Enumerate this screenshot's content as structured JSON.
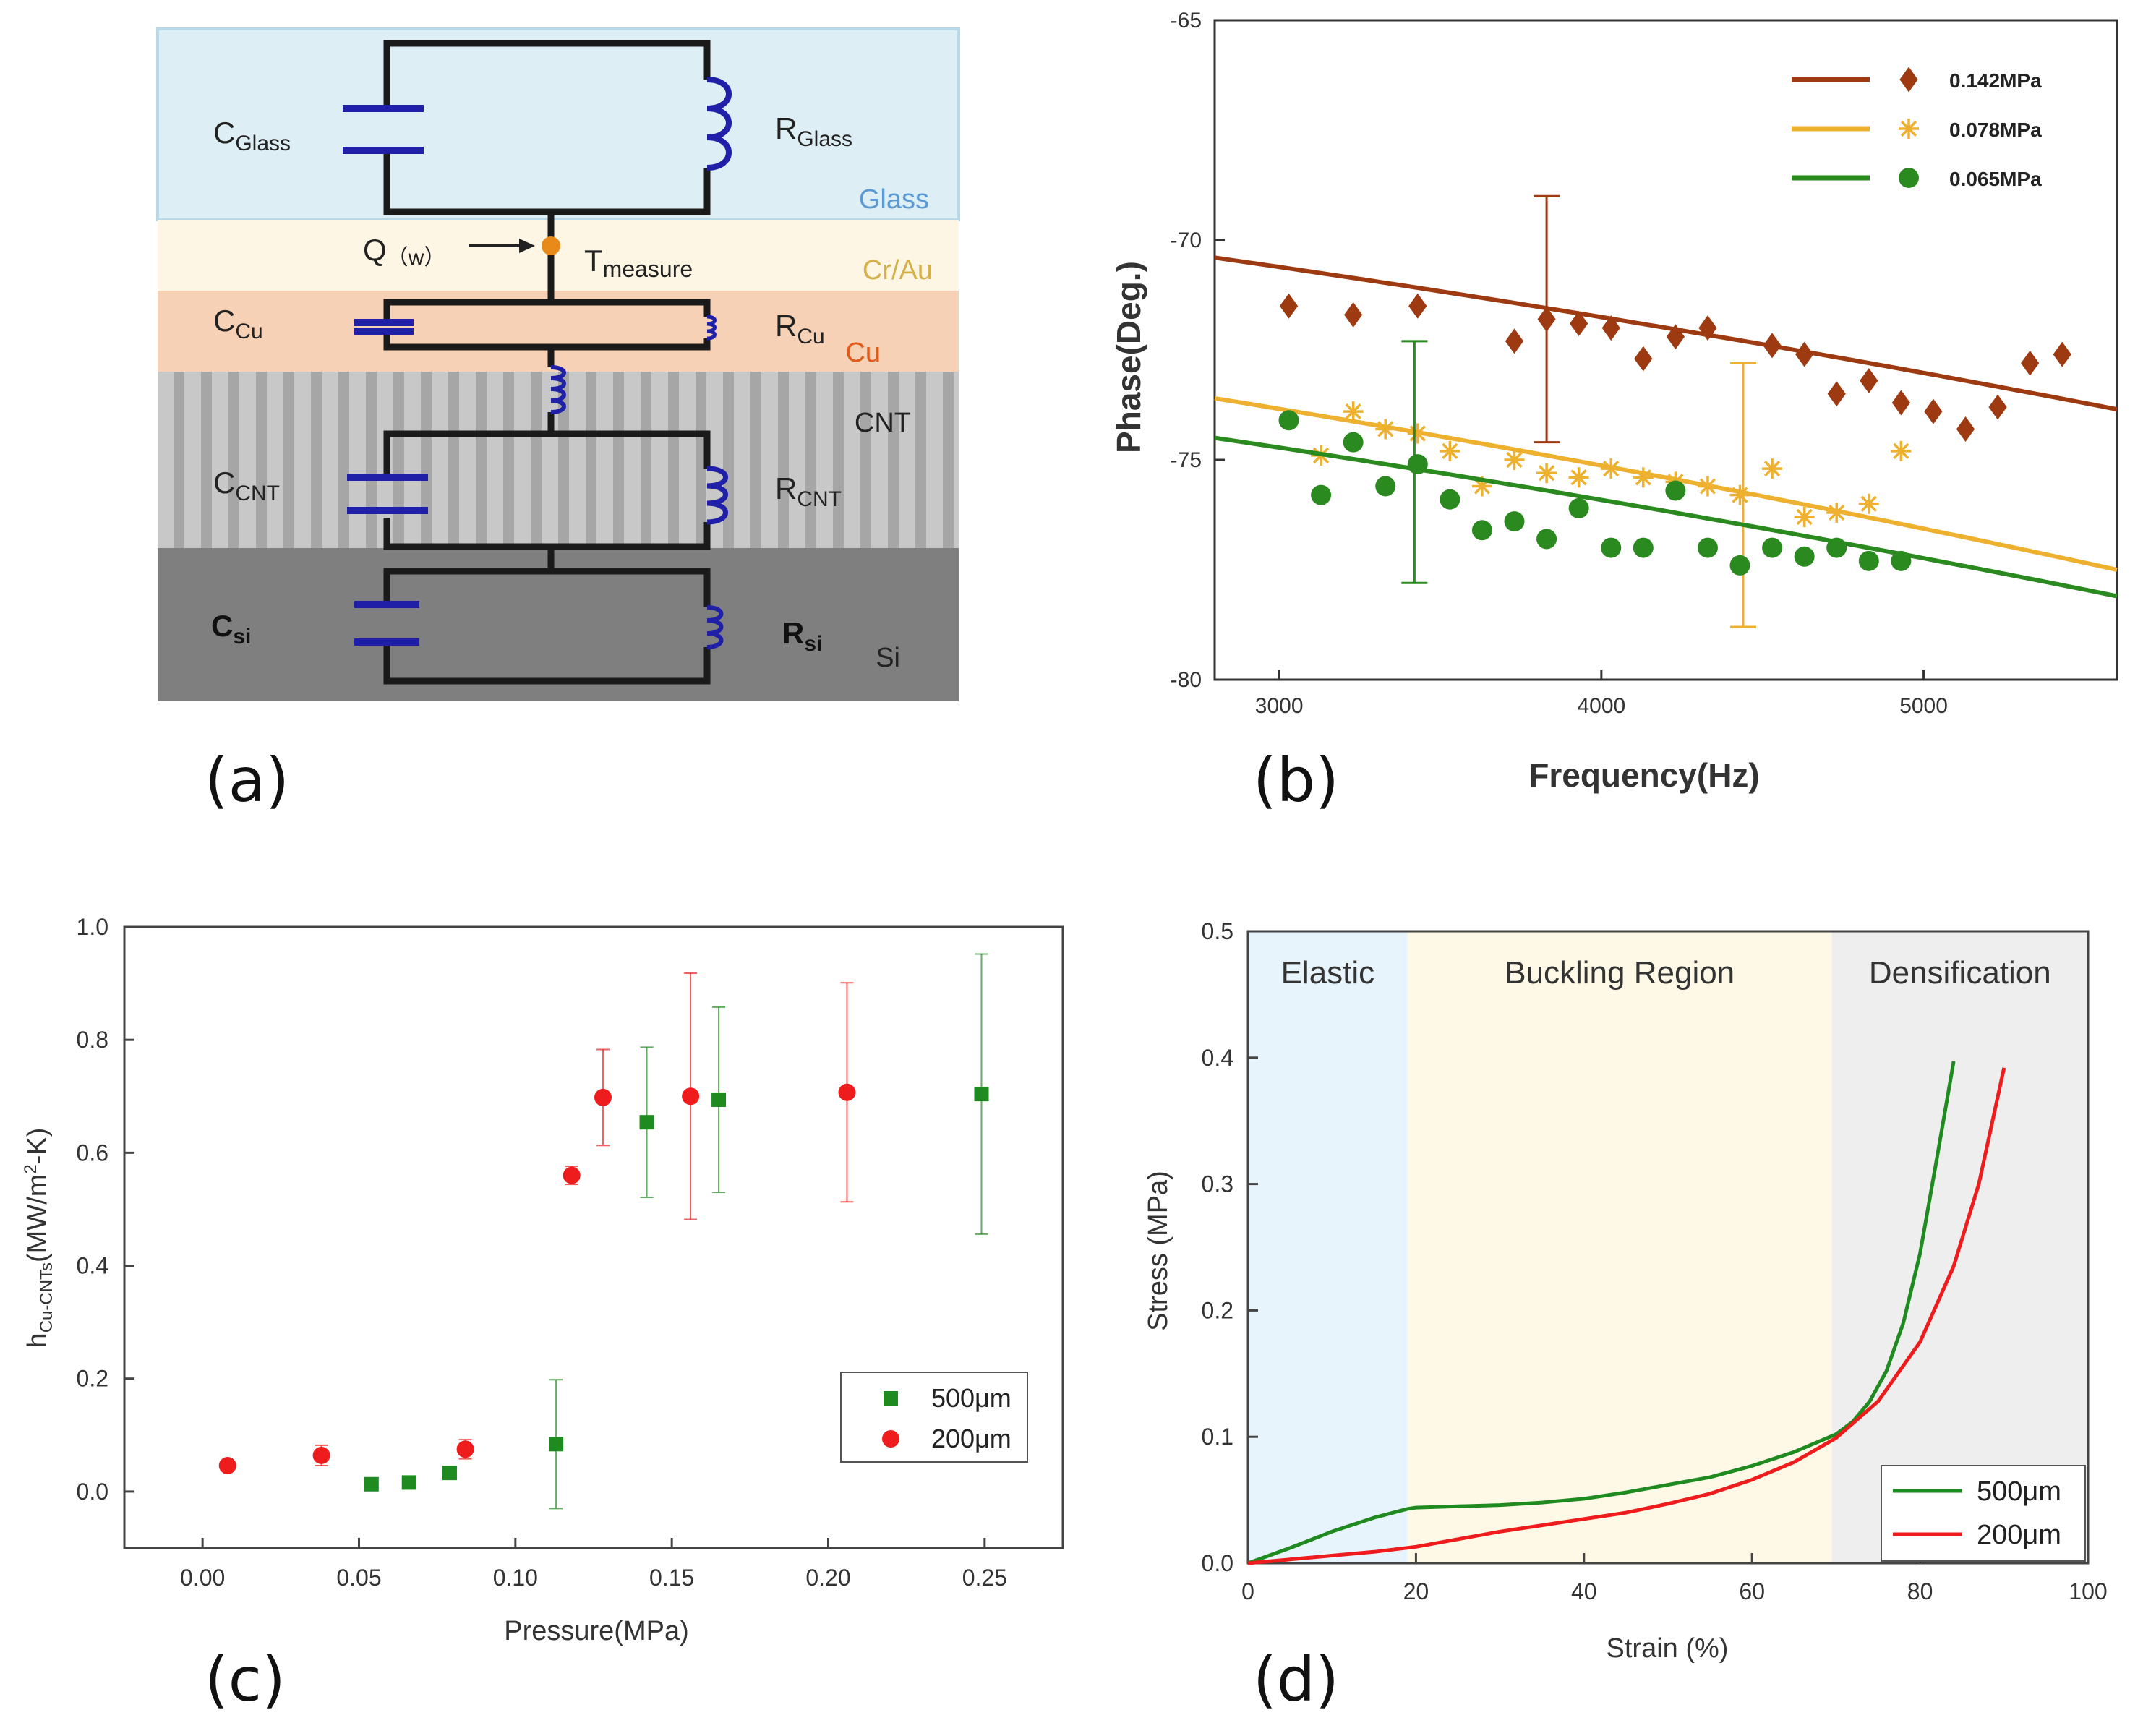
{
  "panel_labels": {
    "a": "(a)",
    "b": "(b)",
    "c": "(c)",
    "d": "(d)"
  },
  "circuit": {
    "layers": [
      {
        "name": "Glass",
        "color": "#5b9bd5",
        "bg": "#deeef5"
      },
      {
        "name": "Cr/Au",
        "color": "#d4b048",
        "bg": "#fdf6e4"
      },
      {
        "name": "Cu",
        "color": "#e05a1a",
        "bg": "#f6d1b5"
      },
      {
        "name": "CNT",
        "color": "#222222",
        "bg": "#bfbfbf"
      },
      {
        "name": "Si",
        "color": "#222222",
        "bg": "#7f7f7f"
      }
    ],
    "labels": {
      "c_glass": {
        "main": "C",
        "sub": "Glass"
      },
      "r_glass": {
        "main": "R",
        "sub": "Glass"
      },
      "c_cu": {
        "main": "C",
        "sub": "Cu"
      },
      "r_cu": {
        "main": "R",
        "sub": "Cu"
      },
      "c_cnt": {
        "main": "C",
        "sub": "CNT"
      },
      "r_cnt": {
        "main": "R",
        "sub": "CNT"
      },
      "c_si": {
        "main": "C",
        "sub": "si"
      },
      "r_si": {
        "main": "R",
        "sub": "si"
      },
      "q": {
        "main": "Q",
        "sub": "（w）"
      },
      "t": {
        "main": "T",
        "sub": "measure"
      }
    },
    "wire_color": "#1a1a1a",
    "element_color": "#1f1fa8",
    "node_color": "#e88a1a"
  },
  "chart_data": [
    {
      "id": "b",
      "type": "scatter",
      "xlabel": "Frequency(Hz)",
      "ylabel": "Phase(Deg.)",
      "xlim": [
        2800,
        5600
      ],
      "ylim": [
        -80,
        -65
      ],
      "xticks": [
        "3000",
        "4000",
        "5000"
      ],
      "yticks": [
        "-65",
        "-70",
        "-75",
        "-80"
      ],
      "legend_position": "top-right",
      "series": [
        {
          "name": "0.142MPa",
          "color": "#9e3a12",
          "marker": "diamond",
          "fit": {
            "x": [
              2800,
              5600
            ],
            "a": -70.4,
            "b": -73.85
          },
          "errorbar": {
            "x": 3830,
            "y0": -69.0,
            "y1": -74.6
          },
          "points": [
            [
              3030,
              -71.5
            ],
            [
              3230,
              -71.7
            ],
            [
              3430,
              -71.5
            ],
            [
              3730,
              -72.3
            ],
            [
              3830,
              -71.8
            ],
            [
              3930,
              -71.9
            ],
            [
              4030,
              -72.0
            ],
            [
              4130,
              -72.7
            ],
            [
              4230,
              -72.2
            ],
            [
              4330,
              -72.0
            ],
            [
              4530,
              -72.4
            ],
            [
              4630,
              -72.6
            ],
            [
              4730,
              -73.5
            ],
            [
              4830,
              -73.2
            ],
            [
              4930,
              -73.7
            ],
            [
              5030,
              -73.9
            ],
            [
              5130,
              -74.3
            ],
            [
              5230,
              -73.8
            ],
            [
              5330,
              -72.8
            ],
            [
              5430,
              -72.6
            ]
          ]
        },
        {
          "name": "0.078MPa",
          "color": "#eeb02f",
          "marker": "asterisk",
          "fit": {
            "x": [
              2800,
              5600
            ],
            "a": -73.6,
            "b": -77.5
          },
          "errorbar": {
            "x": 4440,
            "y0": -72.8,
            "y1": -78.8
          },
          "points": [
            [
              3130,
              -74.9
            ],
            [
              3230,
              -73.9
            ],
            [
              3330,
              -74.3
            ],
            [
              3430,
              -74.4
            ],
            [
              3530,
              -74.8
            ],
            [
              3630,
              -75.6
            ],
            [
              3730,
              -75.0
            ],
            [
              3830,
              -75.3
            ],
            [
              3930,
              -75.4
            ],
            [
              4030,
              -75.2
            ],
            [
              4130,
              -75.4
            ],
            [
              4230,
              -75.5
            ],
            [
              4330,
              -75.6
            ],
            [
              4430,
              -75.8
            ],
            [
              4530,
              -75.2
            ],
            [
              4630,
              -76.3
            ],
            [
              4730,
              -76.2
            ],
            [
              4830,
              -76.0
            ],
            [
              4930,
              -74.8
            ]
          ]
        },
        {
          "name": "0.065MPa",
          "color": "#2b8a1f",
          "marker": "circle",
          "fit": {
            "x": [
              2800,
              5600
            ],
            "a": -74.5,
            "b": -78.1
          },
          "errorbar": {
            "x": 3420,
            "y0": -72.3,
            "y1": -77.8
          },
          "points": [
            [
              3030,
              -74.1
            ],
            [
              3130,
              -75.8
            ],
            [
              3230,
              -74.6
            ],
            [
              3330,
              -75.6
            ],
            [
              3430,
              -75.1
            ],
            [
              3530,
              -75.9
            ],
            [
              3630,
              -76.6
            ],
            [
              3730,
              -76.4
            ],
            [
              3830,
              -76.8
            ],
            [
              3930,
              -76.1
            ],
            [
              4030,
              -77.0
            ],
            [
              4130,
              -77.0
            ],
            [
              4230,
              -75.7
            ],
            [
              4330,
              -77.0
            ],
            [
              4430,
              -77.4
            ],
            [
              4530,
              -77.0
            ],
            [
              4630,
              -77.2
            ],
            [
              4730,
              -77.0
            ],
            [
              4830,
              -77.3
            ],
            [
              4930,
              -77.3
            ]
          ]
        }
      ]
    },
    {
      "id": "c",
      "type": "scatter",
      "xlabel": "Pressure(MPa)",
      "ylabel_main": "h",
      "ylabel_sub": "Cu-CNTs",
      "ylabel_rest": "(MW/m",
      "ylabel_sup": "2",
      "ylabel_end": "-K)",
      "xlim": [
        -0.025,
        0.275
      ],
      "ylim": [
        -0.1,
        1.0
      ],
      "xticks": [
        "0.00",
        "0.05",
        "0.10",
        "0.15",
        "0.20",
        "0.25"
      ],
      "yticks": [
        "0.0",
        "0.2",
        "0.4",
        "0.6",
        "0.8",
        "1.0"
      ],
      "legend_position": "bottom-right",
      "series": [
        {
          "name": "500μm",
          "color": "#1f8a1f",
          "marker": "square",
          "points": [
            [
              0.054,
              0.013,
              0
            ],
            [
              0.066,
              0.016,
              0
            ],
            [
              0.079,
              0.033,
              0
            ],
            [
              0.113,
              0.084,
              0.114
            ],
            [
              0.142,
              0.654,
              0.133
            ],
            [
              0.165,
              0.694,
              0.164
            ],
            [
              0.249,
              0.704,
              0.248
            ]
          ]
        },
        {
          "name": "200μm",
          "color": "#ee1c1c",
          "marker": "circle",
          "points": [
            [
              0.008,
              0.046,
              0
            ],
            [
              0.038,
              0.064,
              0.018
            ],
            [
              0.084,
              0.075,
              0.017
            ],
            [
              0.118,
              0.56,
              0.016
            ],
            [
              0.128,
              0.698,
              0.085
            ],
            [
              0.156,
              0.7,
              0.218
            ],
            [
              0.206,
              0.707,
              0.194
            ]
          ]
        }
      ]
    },
    {
      "id": "d",
      "type": "line",
      "xlabel": "Strain (%)",
      "ylabel": "Stress (MPa)",
      "xlim": [
        0,
        100
      ],
      "ylim": [
        0,
        0.5
      ],
      "xticks": [
        "0",
        "20",
        "40",
        "60",
        "80",
        "100"
      ],
      "yticks": [
        "0.0",
        "0.1",
        "0.2",
        "0.3",
        "0.4",
        "0.5"
      ],
      "legend_position": "bottom-right",
      "regions": [
        {
          "label": "Elastic",
          "x0": 0,
          "x1": 19,
          "color": "#e8f4fb"
        },
        {
          "label": "Buckling Region",
          "x0": 19,
          "x1": 69.5,
          "color": "#fdf9e6"
        },
        {
          "label": "Densification",
          "x0": 69.5,
          "x1": 100,
          "color": "#eeeeee"
        }
      ],
      "series": [
        {
          "name": "500μm",
          "color": "#1f8a1f",
          "x": [
            0,
            5,
            10,
            15,
            19,
            20,
            25,
            30,
            35,
            40,
            45,
            50,
            55,
            60,
            65,
            70,
            72,
            74,
            76,
            78,
            80,
            82,
            84
          ],
          "y": [
            0,
            0.012,
            0.025,
            0.036,
            0.043,
            0.044,
            0.045,
            0.046,
            0.048,
            0.051,
            0.056,
            0.062,
            0.068,
            0.077,
            0.088,
            0.102,
            0.112,
            0.128,
            0.152,
            0.19,
            0.245,
            0.32,
            0.397
          ]
        },
        {
          "name": "200μm",
          "color": "#ee1c1c",
          "x": [
            0,
            5,
            10,
            15,
            20,
            25,
            30,
            35,
            40,
            45,
            50,
            55,
            60,
            65,
            70,
            75,
            80,
            84,
            87,
            90
          ],
          "y": [
            0,
            0.003,
            0.006,
            0.009,
            0.013,
            0.019,
            0.025,
            0.03,
            0.035,
            0.04,
            0.047,
            0.055,
            0.066,
            0.08,
            0.099,
            0.128,
            0.175,
            0.235,
            0.3,
            0.392
          ]
        }
      ]
    }
  ]
}
